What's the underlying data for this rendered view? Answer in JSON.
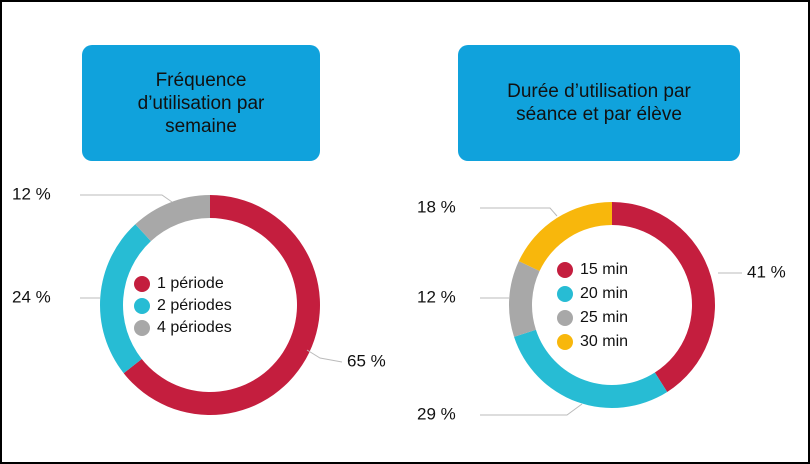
{
  "chart_data": [
    {
      "type": "pie",
      "donut": true,
      "title": "Fréquence d’utilisation par semaine",
      "categories": [
        "1 période",
        "2 périodes",
        "4 périodes"
      ],
      "values": [
        65,
        24,
        12
      ],
      "value_labels": [
        "65 %",
        "24 %",
        "12 %"
      ],
      "colors": [
        "#c41e3e",
        "#27bcd4",
        "#a8a8a8"
      ]
    },
    {
      "type": "pie",
      "donut": true,
      "title": "Durée d’utilisation par séance et par élève",
      "categories": [
        "15 min",
        "20 min",
        "25 min",
        "30 min"
      ],
      "values": [
        41,
        29,
        12,
        18
      ],
      "value_labels": [
        "41 %",
        "29 %",
        "12 %",
        "18 %"
      ],
      "colors": [
        "#c41e3e",
        "#27bcd4",
        "#a8a8a8",
        "#f8b70c"
      ]
    }
  ]
}
